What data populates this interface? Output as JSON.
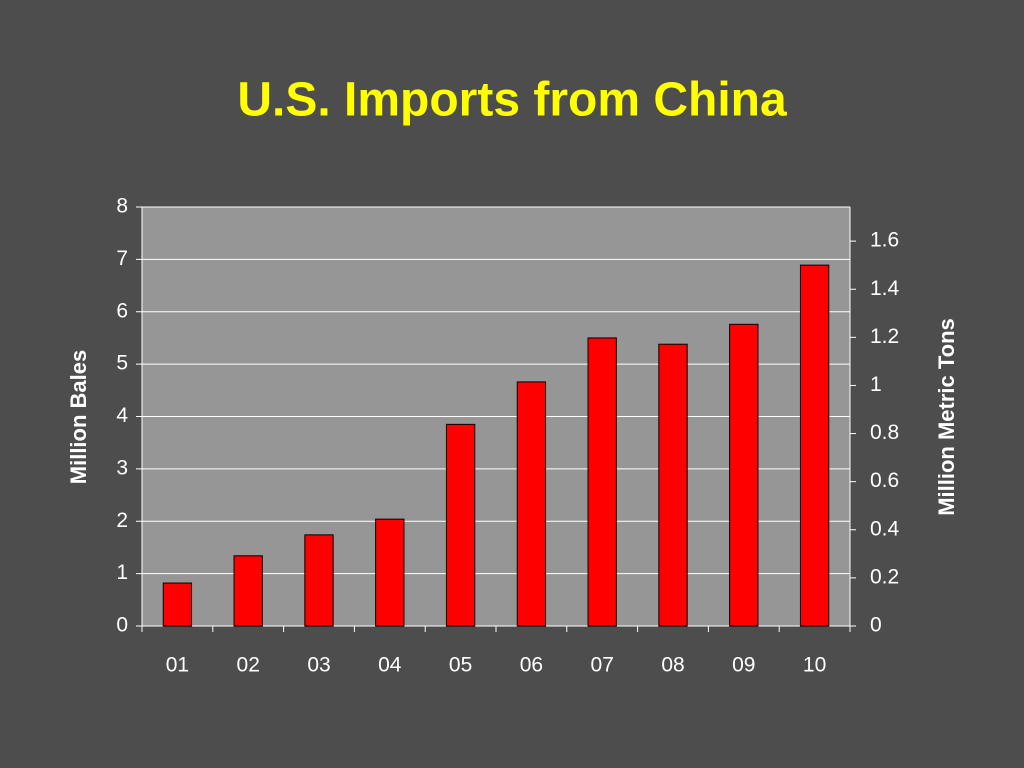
{
  "chart_data": {
    "type": "bar",
    "title": "U.S. Imports from China",
    "ylabel": "Million Bales",
    "y2label": "Million Metric Tons",
    "categories": [
      "01",
      "02",
      "03",
      "04",
      "05",
      "06",
      "07",
      "08",
      "09",
      "10"
    ],
    "values": [
      0.82,
      1.34,
      1.74,
      2.04,
      3.85,
      4.66,
      5.5,
      5.38,
      5.76,
      6.89
    ],
    "color": "#ff0000",
    "ylim": [
      0,
      8
    ],
    "yticks": [
      0,
      1,
      2,
      3,
      4,
      5,
      6,
      7,
      8
    ],
    "y2lim": [
      0,
      1.7418
    ],
    "y2ticks": [
      0,
      0.2,
      0.4,
      0.6,
      0.8,
      1,
      1.2,
      1.4,
      1.6
    ],
    "grid": true
  }
}
